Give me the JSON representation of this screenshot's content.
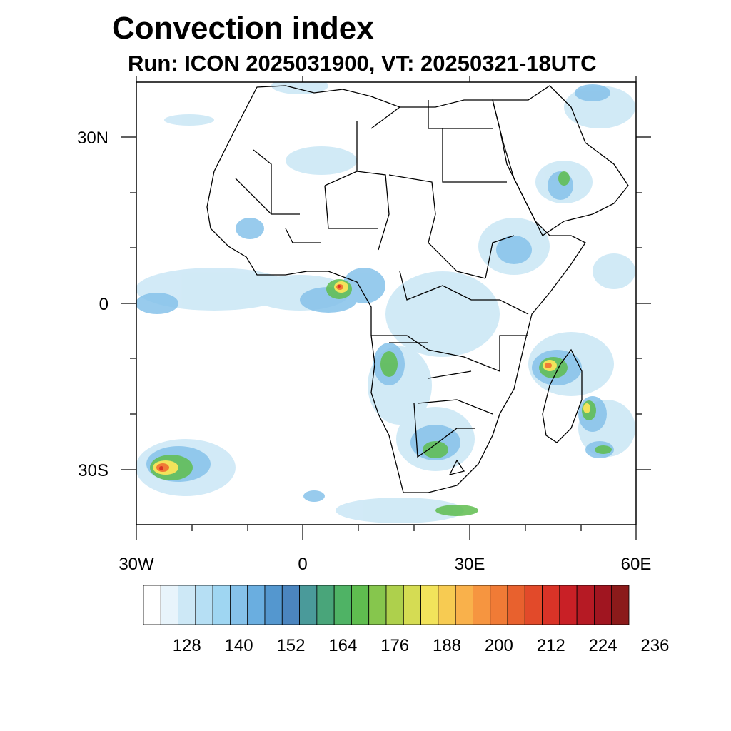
{
  "header": {
    "title": "Convection index",
    "subtitle": "Run: ICON 2025031900,  VT: 20250321-18UTC"
  },
  "axes": {
    "lat_labels": [
      "30N",
      "0",
      "30S"
    ],
    "lon_labels": [
      "30W",
      "0",
      "30E",
      "60E"
    ]
  },
  "colorbar": {
    "tick_labels": [
      "128",
      "140",
      "152",
      "164",
      "176",
      "188",
      "200",
      "212",
      "224",
      "236"
    ],
    "colors": [
      "#ffffff",
      "#e8f4fb",
      "#cde8f6",
      "#b6dff4",
      "#9fd6f2",
      "#86c2ea",
      "#6aaee0",
      "#5497cf",
      "#4b85bf",
      "#4a9a9a",
      "#49a57a",
      "#4fb365",
      "#5fbd4f",
      "#86c64d",
      "#aed04c",
      "#d5dc53",
      "#f2e35b",
      "#f7cb52",
      "#f9b14b",
      "#f69540",
      "#f07b36",
      "#e8612e",
      "#e24a2a",
      "#d93327",
      "#c92026",
      "#b61a24",
      "#a01520",
      "#8b1a1a"
    ]
  },
  "map": {
    "land_color": "#ffffff",
    "border_color": "#000000",
    "lon_range": [
      -30,
      60
    ],
    "lat_range": [
      -40,
      40
    ]
  }
}
